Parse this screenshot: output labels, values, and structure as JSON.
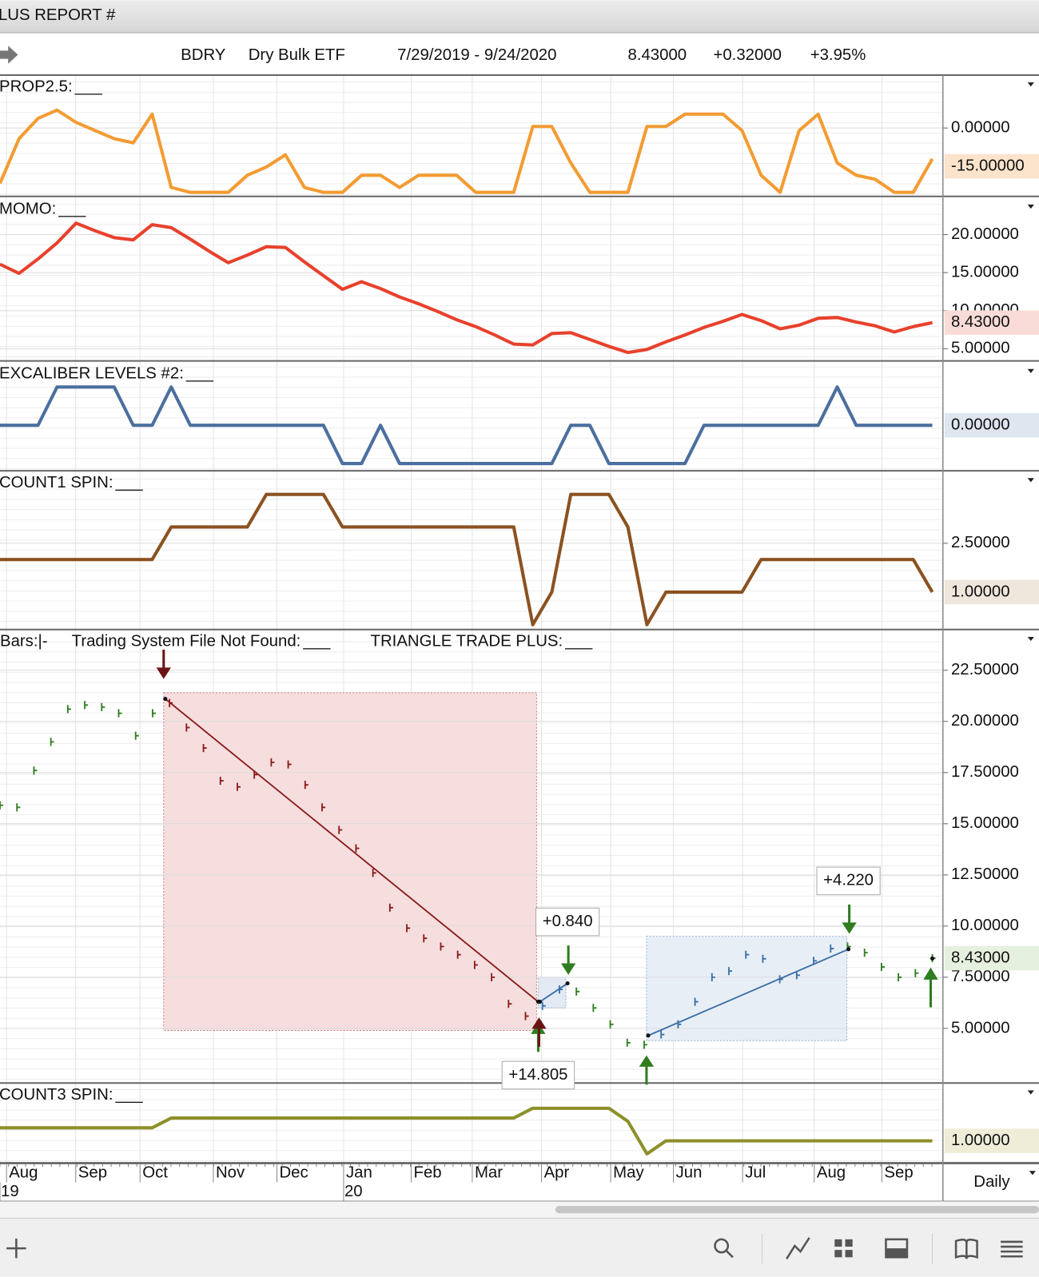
{
  "window_title": "LUS REPORT #",
  "header": {
    "symbol": "BDRY",
    "name": "Dry Bulk ETF",
    "range": "7/29/2019 - 9/24/2020",
    "last": "8.43000",
    "change": "+0.32000",
    "percent": "+3.95%"
  },
  "panels": [
    {
      "type": "line",
      "label": "PROP2.5:",
      "blank": "___",
      "color": "#f39c33",
      "ylim": [
        -26.8,
        20.4
      ],
      "yticks": [
        {
          "value": 0,
          "label": "0.00000"
        }
      ],
      "marker": {
        "value": -15,
        "label": "-15.00000",
        "color": "#c8731e",
        "background": "#fbe3cc"
      },
      "values": [
        -21.7,
        -4.2,
        3.8,
        7.0,
        2.2,
        -1.0,
        -4.2,
        -5.8,
        5.4,
        -23.3,
        -25.2,
        -25.2,
        -25.2,
        -18.5,
        -15.3,
        -10.5,
        -23.3,
        -25.2,
        -25.2,
        -18.5,
        -18.5,
        -23.3,
        -18.5,
        -18.5,
        -18.5,
        -25.2,
        -25.2,
        -25.2,
        0.6,
        0.6,
        -13.7,
        -25.2,
        -25.2,
        -25.2,
        0.6,
        0.6,
        5.4,
        5.4,
        5.4,
        -1.0,
        -18.5,
        -25.2,
        -1.0,
        5.4,
        -13.7,
        -18.5,
        -20.1,
        -25.2,
        -25.2,
        -12.1
      ]
    },
    {
      "type": "line",
      "label": "MOMO:",
      "blank": "___",
      "color": "#e8412c",
      "ylim": [
        3.4,
        24.8
      ],
      "yticks": [
        {
          "value": 20,
          "label": "20.00000"
        },
        {
          "value": 15,
          "label": "15.00000"
        },
        {
          "value": 10,
          "label": "10.00000"
        },
        {
          "value": 5,
          "label": "5.00000"
        }
      ],
      "marker": {
        "value": 8.43,
        "label": "8.43000",
        "color": "#d23a2a",
        "background": "#f9dcd8"
      },
      "values": [
        16.1,
        14.9,
        16.8,
        18.9,
        21.5,
        20.5,
        19.6,
        19.3,
        21.3,
        20.9,
        19.4,
        17.8,
        16.3,
        17.3,
        18.4,
        18.3,
        16.4,
        14.6,
        12.8,
        13.8,
        12.9,
        11.8,
        10.9,
        9.9,
        8.8,
        7.9,
        6.8,
        5.6,
        5.5,
        7.0,
        7.1,
        6.2,
        5.3,
        4.5,
        4.9,
        5.9,
        6.8,
        7.8,
        8.6,
        9.5,
        8.7,
        7.6,
        8.1,
        9.0,
        9.1,
        8.5,
        8.0,
        7.2,
        7.9,
        8.43
      ]
    },
    {
      "type": "line",
      "label": "EXCALIBER LEVELS #2:",
      "blank": "___",
      "color": "#4b6f9e",
      "ylim": [
        -1.19,
        1.64
      ],
      "marker": {
        "value": 0,
        "label": "0.00000",
        "color": "#4b6f9e",
        "background": "#dfe6f0"
      },
      "values": [
        0,
        0,
        0,
        1,
        1,
        1,
        1,
        0,
        0,
        1,
        0,
        0,
        0,
        0,
        0,
        0,
        0,
        0,
        -1,
        -1,
        0,
        -1,
        -1,
        -1,
        -1,
        -1,
        -1,
        -1,
        -1,
        -1,
        0,
        0,
        -1,
        -1,
        -1,
        -1,
        -1,
        0,
        0,
        0,
        0,
        0,
        0,
        0,
        1,
        0,
        0,
        0,
        0,
        0
      ]
    },
    {
      "type": "line",
      "label": "COUNT1 SPIN:",
      "blank": "___",
      "color": "#8b5220",
      "ylim": [
        -0.15,
        4.7
      ],
      "yticks": [
        {
          "value": 2.5,
          "label": "2.50000"
        }
      ],
      "marker": {
        "value": 1,
        "label": "1.00000",
        "color": "#8b5220",
        "background": "#efe6dc"
      },
      "values": [
        2,
        2,
        2,
        2,
        2,
        2,
        2,
        2,
        2,
        3,
        3,
        3,
        3,
        3,
        4,
        4,
        4,
        4,
        3,
        3,
        3,
        3,
        3,
        3,
        3,
        3,
        3,
        3,
        0,
        1,
        4,
        4,
        4,
        3,
        0,
        1,
        1,
        1,
        1,
        1,
        2,
        2,
        2,
        2,
        2,
        2,
        2,
        2,
        2,
        1
      ]
    },
    {
      "type": "line",
      "label": "COUNT3 SPIN:",
      "blank": "___",
      "color": "#8d8f2a",
      "ylim": [
        0.325,
        2.75
      ],
      "marker": {
        "value": 1,
        "label": "1.00000",
        "color": "#6d6f1a",
        "background": "#eeeed8"
      },
      "values": [
        1.4,
        1.4,
        1.4,
        1.4,
        1.4,
        1.4,
        1.4,
        1.4,
        1.4,
        1.7,
        1.7,
        1.7,
        1.7,
        1.7,
        1.7,
        1.7,
        1.7,
        1.7,
        1.7,
        1.7,
        1.7,
        1.7,
        1.7,
        1.7,
        1.7,
        1.7,
        1.7,
        1.7,
        2.0,
        2.0,
        2.0,
        2.0,
        2.0,
        1.6,
        0.6,
        1,
        1,
        1,
        1,
        1,
        1,
        1,
        1,
        1,
        1,
        1,
        1,
        1,
        1,
        1
      ]
    }
  ],
  "price": {
    "type": "bar",
    "legend": [
      {
        "label": "Bars:|-"
      },
      {
        "label": "Trading System File Not Found:",
        "blank": "___"
      },
      {
        "label": "TRIANGLE TRADE PLUS:",
        "blank": "___"
      }
    ],
    "blank_color": "#3a6fa6",
    "bar_color": "#2f7d1f",
    "ylim": [
      2.33,
      24.45
    ],
    "yticks": [
      {
        "value": 22.5,
        "label": "22.50000"
      },
      {
        "value": 20,
        "label": "20.00000"
      },
      {
        "value": 17.5,
        "label": "17.50000"
      },
      {
        "value": 15,
        "label": "15.00000"
      },
      {
        "value": 12.5,
        "label": "12.50000"
      },
      {
        "value": 10,
        "label": "10.00000"
      },
      {
        "value": 7.5,
        "label": "7.50000"
      },
      {
        "value": 5,
        "label": "5.00000"
      }
    ],
    "marker": {
      "value": 8.43,
      "label": "8.43000",
      "color": "#2f6b1f",
      "background": "#e6f0df"
    },
    "values": [
      15.9,
      15.8,
      17.6,
      19.0,
      20.6,
      20.8,
      20.7,
      20.4,
      19.3,
      20.4,
      20.9,
      19.7,
      18.7,
      17.1,
      16.8,
      17.4,
      18.0,
      17.9,
      16.9,
      15.8,
      14.7,
      13.8,
      12.6,
      10.9,
      9.9,
      9.4,
      9.0,
      8.6,
      8.1,
      7.5,
      6.2,
      5.6,
      6.1,
      6.9,
      6.8,
      6.0,
      5.2,
      4.3,
      4.2,
      4.7,
      5.2,
      6.3,
      7.5,
      7.8,
      8.6,
      8.4,
      7.4,
      7.6,
      8.3,
      8.9,
      9.0,
      8.7,
      8.0,
      7.5,
      7.7,
      8.43
    ],
    "trades": [
      {
        "direction": "short",
        "profit": 14.805,
        "label": "+14.805",
        "entry": 21.1,
        "exit": 6.3,
        "high": 21.4,
        "low": 4.9,
        "color": "#8b1a1a",
        "fill": "#f6dede",
        "label_color": "#a3262a"
      },
      {
        "direction": "long",
        "profit": 0.84,
        "label": "+0.840",
        "entry": 6.3,
        "exit": 7.2,
        "high": 7.5,
        "low": 6.0,
        "color": "#3a6fa6",
        "fill": "#e3eaf4",
        "label_color": "#3d8a2e"
      },
      {
        "direction": "long",
        "profit": 4.22,
        "label": "+4.220",
        "entry": 4.65,
        "exit": 8.87,
        "high": 9.5,
        "low": 4.4,
        "color": "#3a6fa6",
        "fill": "#e8eef6",
        "label_color": "#3d8a2e"
      }
    ],
    "arrow_color": "#2f7d1f",
    "short_arrow_color": "#6b1414"
  },
  "x_axis": {
    "months": [
      "Aug",
      "Sep",
      "Oct",
      "Nov",
      "Dec",
      "Jan",
      "Feb",
      "Mar",
      "Apr",
      "May",
      "Jun",
      "Jul",
      "Aug",
      "Sep"
    ],
    "years": [
      "19",
      "20"
    ]
  },
  "timeframe": "Daily"
}
